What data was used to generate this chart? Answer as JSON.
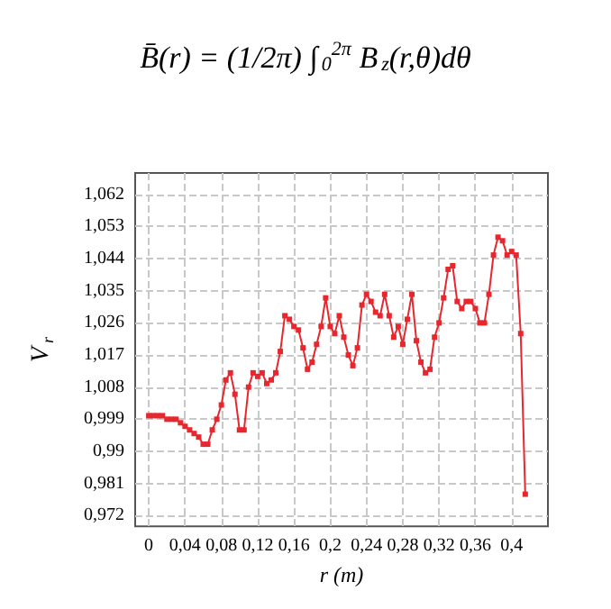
{
  "chart_data": {
    "type": "line",
    "xlabel": "r (m)",
    "ylabel": "V$_{r}$",
    "annotations": [
      "B̄(r) = (1/2π) ∫$_{0}$$^{2π}$ B$_{z}$(r,θ)dθ"
    ],
    "x": [
      0,
      0.005,
      0.01,
      0.015,
      0.02,
      0.025,
      0.03,
      0.035,
      0.04,
      0.045,
      0.05,
      0.055,
      0.06,
      0.065,
      0.07,
      0.075,
      0.08,
      0.085,
      0.09,
      0.095,
      0.1,
      0.105,
      0.11,
      0.115,
      0.12,
      0.125,
      0.13,
      0.135,
      0.14,
      0.145,
      0.15,
      0.155,
      0.16,
      0.165,
      0.17,
      0.175,
      0.18,
      0.185,
      0.19,
      0.195,
      0.2,
      0.205,
      0.21,
      0.215,
      0.22,
      0.225,
      0.23,
      0.235,
      0.24,
      0.245,
      0.25,
      0.255,
      0.26,
      0.265,
      0.27,
      0.275,
      0.28,
      0.285,
      0.29,
      0.295,
      0.3,
      0.305,
      0.31,
      0.315,
      0.32,
      0.325,
      0.33,
      0.335,
      0.34,
      0.345,
      0.35,
      0.355,
      0.36,
      0.365,
      0.37,
      0.375,
      0.38,
      0.385,
      0.39,
      0.395,
      0.4,
      0.405,
      0.41,
      0.415
    ],
    "series": [
      {
        "color": "#e8262e",
        "values": [
          1.0,
          1.0,
          1.0,
          1.0,
          0.999,
          0.999,
          0.999,
          0.998,
          0.997,
          0.996,
          0.995,
          0.994,
          0.992,
          0.992,
          0.996,
          0.999,
          1.003,
          1.01,
          1.012,
          1.006,
          0.996,
          0.996,
          1.008,
          1.012,
          1.011,
          1.012,
          1.009,
          1.01,
          1.012,
          1.018,
          1.028,
          1.027,
          1.025,
          1.024,
          1.019,
          1.013,
          1.015,
          1.02,
          1.025,
          1.033,
          1.025,
          1.023,
          1.028,
          1.022,
          1.017,
          1.014,
          1.019,
          1.031,
          1.034,
          1.032,
          1.029,
          1.028,
          1.034,
          1.028,
          1.022,
          1.025,
          1.02,
          1.027,
          1.034,
          1.021,
          1.015,
          1.012,
          1.013,
          1.022,
          1.026,
          1.033,
          1.041,
          1.042,
          1.032,
          1.03,
          1.032,
          1.032,
          1.03,
          1.026,
          1.026,
          1.034,
          1.045,
          1.05,
          1.049,
          1.045,
          1.046,
          1.045,
          1.023,
          0.978
        ]
      }
    ],
    "xlim": [
      -0.015,
      0.44
    ],
    "ylim": [
      0.969,
      1.068
    ],
    "xticks": [
      0,
      {
        "value": 0.04,
        "label": "0,04"
      },
      {
        "value": 0.08,
        "label": "0,08"
      },
      {
        "value": 0.12,
        "label": "0,12"
      },
      {
        "value": 0.16,
        "label": "0,16"
      },
      {
        "value": 0.2,
        "label": "0,2"
      },
      {
        "value": 0.24,
        "label": "0,24"
      },
      {
        "value": 0.28,
        "label": "0,28"
      },
      {
        "value": 0.32,
        "label": "0,32"
      },
      {
        "value": 0.36,
        "label": "0,36"
      },
      {
        "value": 0.4,
        "label": "0,4"
      }
    ],
    "yticks": [
      {
        "value": 0.972,
        "label": "0,972"
      },
      {
        "value": 0.981,
        "label": "0,981"
      },
      {
        "value": 0.99,
        "label": "0,99"
      },
      {
        "value": 0.999,
        "label": "0,999"
      },
      {
        "value": 1.008,
        "label": "1,008"
      },
      {
        "value": 1.017,
        "label": "1,017"
      },
      {
        "value": 1.026,
        "label": "1,026"
      },
      {
        "value": 1.035,
        "label": "1,035"
      },
      {
        "value": 1.044,
        "label": "1,044"
      },
      {
        "value": 1.053,
        "label": "1,053"
      },
      {
        "value": 1.062,
        "label": "1,062"
      }
    ],
    "grid": true,
    "marker": "square",
    "line_style": "solid"
  }
}
